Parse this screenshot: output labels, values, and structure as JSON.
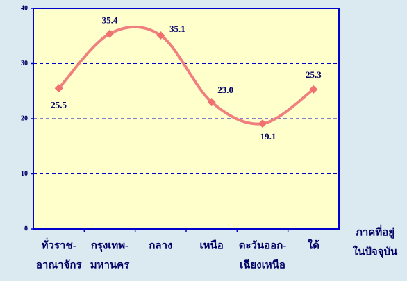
{
  "chart_data": {
    "type": "line",
    "categories": [
      [
        "ทั่วราช-",
        "อาณาจักร"
      ],
      [
        "กรุงเทพ-",
        "มหานคร"
      ],
      [
        "กลาง"
      ],
      [
        "เหนือ"
      ],
      [
        "ตะวันออก-",
        "เฉียงเหนือ"
      ],
      [
        "ใต้"
      ]
    ],
    "x_label": [
      "ภาคที่อยู่",
      "ในปัจจุบัน"
    ],
    "series": [
      {
        "color": "#f08080",
        "marker_color": "#f07070",
        "values": [
          25.5,
          35.4,
          35.1,
          23.0,
          19.1,
          25.3
        ],
        "value_labels": [
          "25.5",
          "35.4",
          "35.1",
          "23.0",
          "19.1",
          "25.3"
        ]
      }
    ],
    "ylim": [
      0,
      40
    ],
    "yticks": [
      0,
      10,
      20,
      30,
      40
    ],
    "grid": true,
    "smooth": true
  }
}
